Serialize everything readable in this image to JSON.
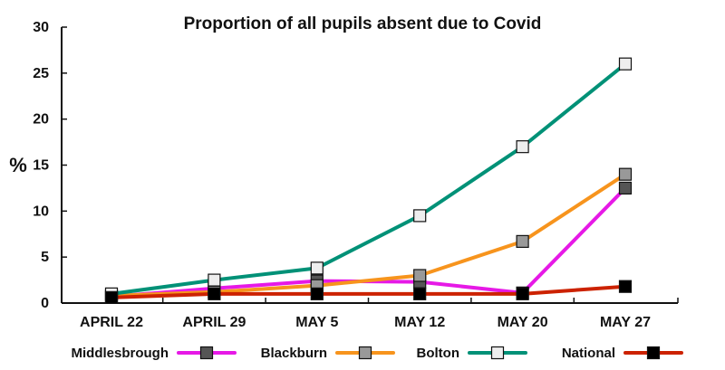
{
  "chart_data": {
    "type": "line",
    "title": "Proportion of all pupils absent due to Covid",
    "ylabel": "%",
    "xlabel": "",
    "categories": [
      "APRIL 22",
      "APRIL 29",
      "MAY 5",
      "MAY 12",
      "MAY 20",
      "MAY 27"
    ],
    "ylim": [
      0,
      30
    ],
    "yticks": [
      0,
      5,
      10,
      15,
      20,
      25,
      30
    ],
    "grid": false,
    "legend_position": "bottom",
    "series": [
      {
        "name": "Middlesbrough",
        "color": "#e619e6",
        "marker_fill": "#555555",
        "values": [
          0.7,
          1.6,
          2.4,
          2.3,
          1.1,
          12.5
        ]
      },
      {
        "name": "Blackburn",
        "color": "#f7941d",
        "marker_fill": "#999999",
        "values": [
          0.8,
          1.2,
          1.9,
          3.0,
          6.7,
          14.0
        ]
      },
      {
        "name": "Bolton",
        "color": "#009177",
        "marker_fill": "#eeeeee",
        "values": [
          1.0,
          2.5,
          3.8,
          9.5,
          17.0,
          26.0
        ]
      },
      {
        "name": "National",
        "color": "#cc2200",
        "marker_fill": "#000000",
        "values": [
          0.6,
          1.0,
          1.0,
          1.0,
          1.0,
          1.8
        ]
      }
    ]
  }
}
